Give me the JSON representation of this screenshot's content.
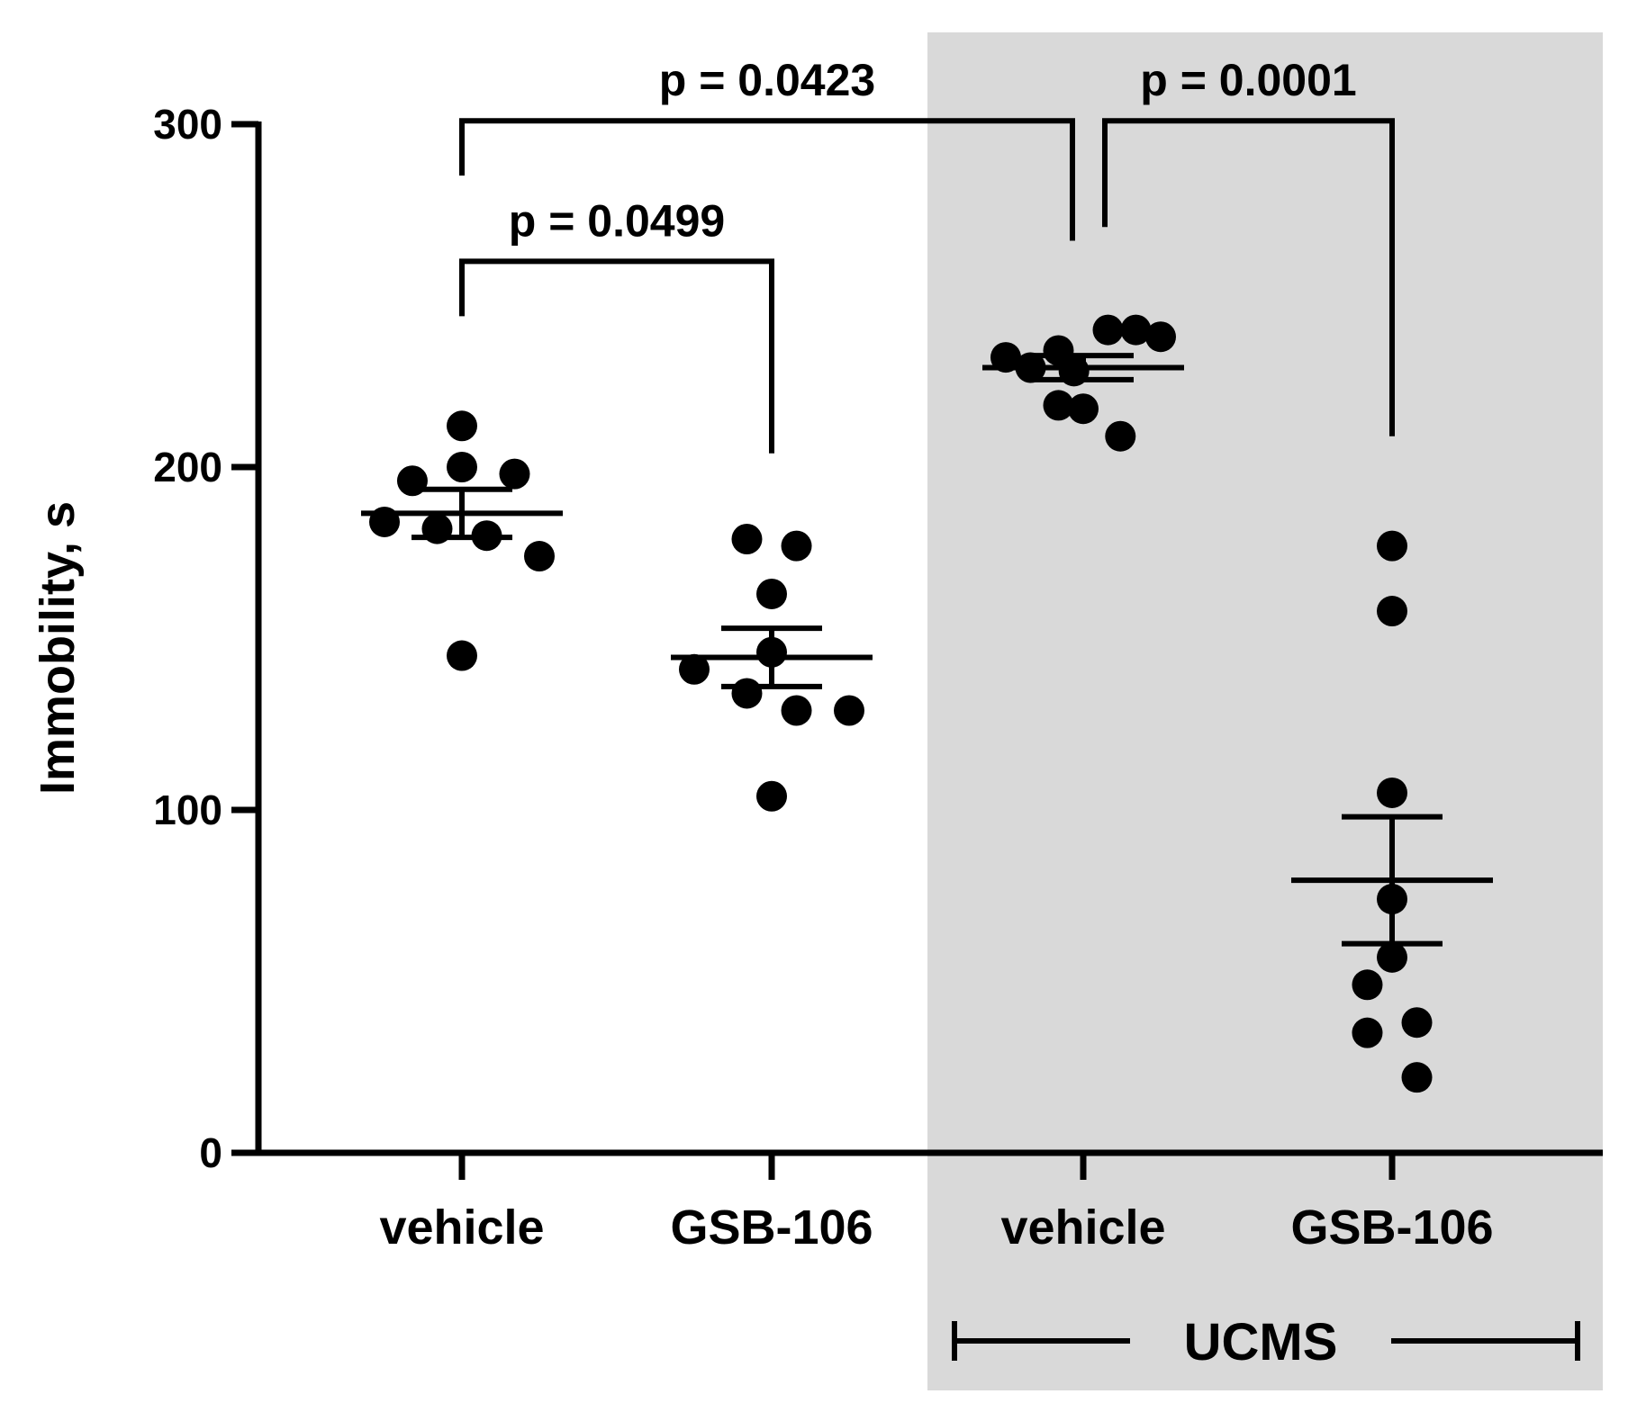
{
  "colors": {
    "shade": "#d9d9d9",
    "ink": "#000000",
    "background": "#ffffff"
  },
  "chart_data": {
    "type": "scatter",
    "title": "",
    "ylabel": "Immobility, s",
    "xlabel": "",
    "ylim": [
      0,
      300
    ],
    "yticks": [
      "0",
      "100",
      "200",
      "300"
    ],
    "categories": [
      "vehicle",
      "GSB-106",
      "vehicle",
      "GSB-106"
    ],
    "groups": [
      {
        "category": "vehicle",
        "points": [
          {
            "offset": 0.0,
            "y": 212
          },
          {
            "offset": 0.0,
            "y": 200
          },
          {
            "offset": -0.16,
            "y": 196
          },
          {
            "offset": 0.17,
            "y": 198
          },
          {
            "offset": -0.25,
            "y": 184
          },
          {
            "offset": -0.08,
            "y": 182
          },
          {
            "offset": 0.08,
            "y": 180
          },
          {
            "offset": 0.25,
            "y": 174
          },
          {
            "offset": 0.0,
            "y": 145
          }
        ],
        "mean": 186.5,
        "sem_low": 179.5,
        "sem_high": 193.5
      },
      {
        "category": "GSB-106",
        "points": [
          {
            "offset": -0.08,
            "y": 179
          },
          {
            "offset": 0.08,
            "y": 177
          },
          {
            "offset": 0.0,
            "y": 163
          },
          {
            "offset": 0.0,
            "y": 146
          },
          {
            "offset": -0.25,
            "y": 141
          },
          {
            "offset": -0.08,
            "y": 134
          },
          {
            "offset": 0.08,
            "y": 129
          },
          {
            "offset": 0.25,
            "y": 129
          },
          {
            "offset": 0.0,
            "y": 104
          }
        ],
        "mean": 144.5,
        "sem_low": 136,
        "sem_high": 153
      },
      {
        "category": "vehicle",
        "points": [
          {
            "offset": -0.25,
            "y": 232
          },
          {
            "offset": -0.17,
            "y": 229
          },
          {
            "offset": -0.08,
            "y": 234
          },
          {
            "offset": -0.03,
            "y": 228
          },
          {
            "offset": 0.08,
            "y": 240
          },
          {
            "offset": 0.17,
            "y": 240
          },
          {
            "offset": 0.25,
            "y": 238
          },
          {
            "offset": -0.08,
            "y": 218
          },
          {
            "offset": 0.0,
            "y": 217
          },
          {
            "offset": 0.12,
            "y": 209
          }
        ],
        "mean": 229,
        "sem_low": 225.5,
        "sem_high": 232.5
      },
      {
        "category": "GSB-106",
        "points": [
          {
            "offset": 0.0,
            "y": 177
          },
          {
            "offset": 0.0,
            "y": 158
          },
          {
            "offset": 0.0,
            "y": 105
          },
          {
            "offset": 0.0,
            "y": 74
          },
          {
            "offset": 0.0,
            "y": 57
          },
          {
            "offset": -0.08,
            "y": 49
          },
          {
            "offset": 0.08,
            "y": 38
          },
          {
            "offset": -0.08,
            "y": 35
          },
          {
            "offset": 0.08,
            "y": 22
          }
        ],
        "mean": 79.5,
        "sem_low": 61,
        "sem_high": 98
      }
    ],
    "comparisons": [
      {
        "from": 0,
        "to": 1,
        "label": "p = 0.0499",
        "bar_y": 260,
        "from_drop": 244,
        "to_drop": 204
      },
      {
        "from": 0,
        "to": 2,
        "label": "p = 0.0423",
        "bar_y": 301,
        "from_drop": 285,
        "to_drop": 266
      },
      {
        "from": 2,
        "to": 3,
        "label": "p = 0.0001",
        "bar_y": 301,
        "from_drop": 270,
        "to_drop": 209
      }
    ],
    "bracket_label": "UCMS",
    "shaded_groups": [
      2,
      3
    ]
  }
}
